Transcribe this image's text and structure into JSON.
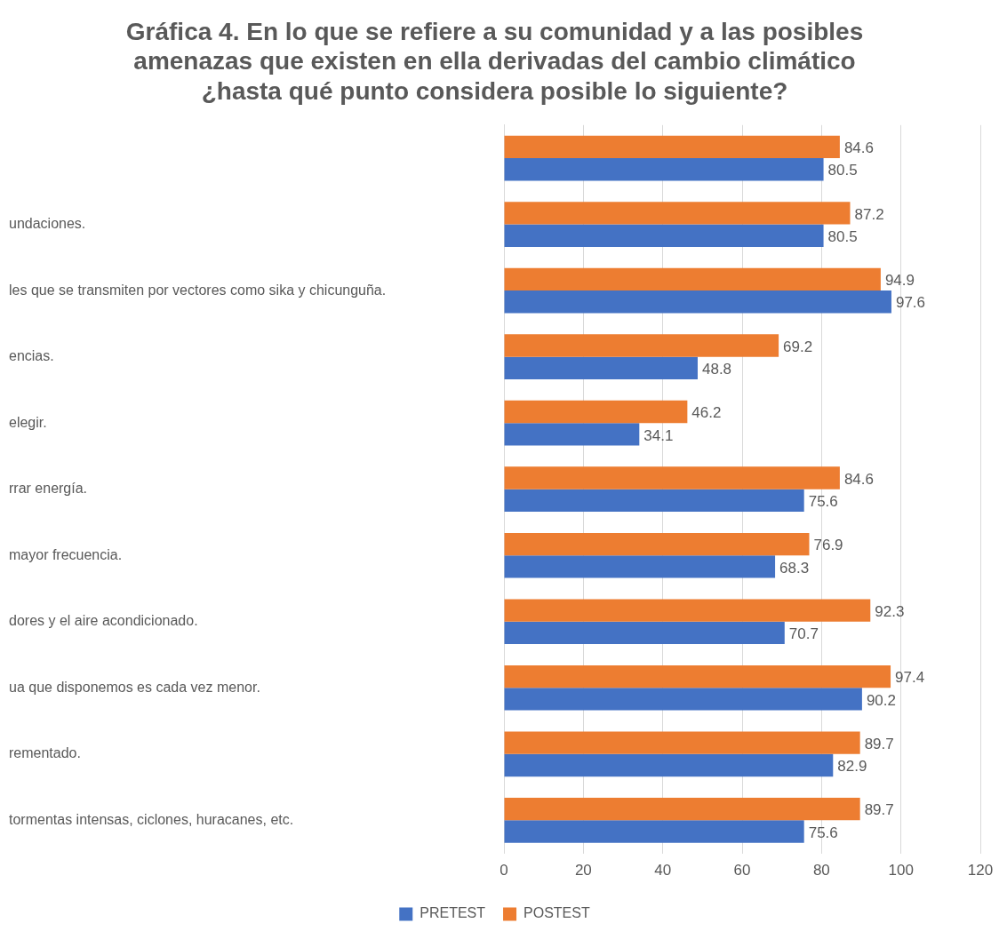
{
  "chart_data": {
    "type": "bar",
    "orientation": "horizontal",
    "title": "Gráfica 4. En lo que se refiere a su comunidad y a las posibles amenazas que existen en ella derivadas del cambio climático ¿hasta qué punto considera posible lo siguiente?",
    "categories": [
      null,
      "undaciones.",
      "les que se transmiten por vectores como sika y chicunguña.",
      "encias.",
      "elegir.",
      "rrar energía.",
      "mayor frecuencia.",
      "dores y el aire acondicionado.",
      "ua que disponemos es cada vez menor.",
      "rementado.",
      "tormentas intensas, ciclones, huracanes, etc."
    ],
    "series": [
      {
        "name": "PRETEST",
        "color": "#4472c4",
        "values": [
          80.5,
          80.5,
          97.6,
          48.8,
          34.1,
          75.6,
          68.3,
          70.7,
          90.2,
          82.9,
          75.6
        ]
      },
      {
        "name": "POSTEST",
        "color": "#ed7d31",
        "values": [
          84.6,
          87.2,
          94.9,
          69.2,
          46.2,
          84.6,
          76.9,
          92.3,
          97.4,
          89.7,
          89.7
        ]
      }
    ],
    "xlim": [
      0,
      120
    ],
    "xticks": [
      0,
      20,
      40,
      60,
      80,
      100,
      120
    ],
    "grid": "x",
    "legend": "bottom",
    "data_labels": true
  }
}
